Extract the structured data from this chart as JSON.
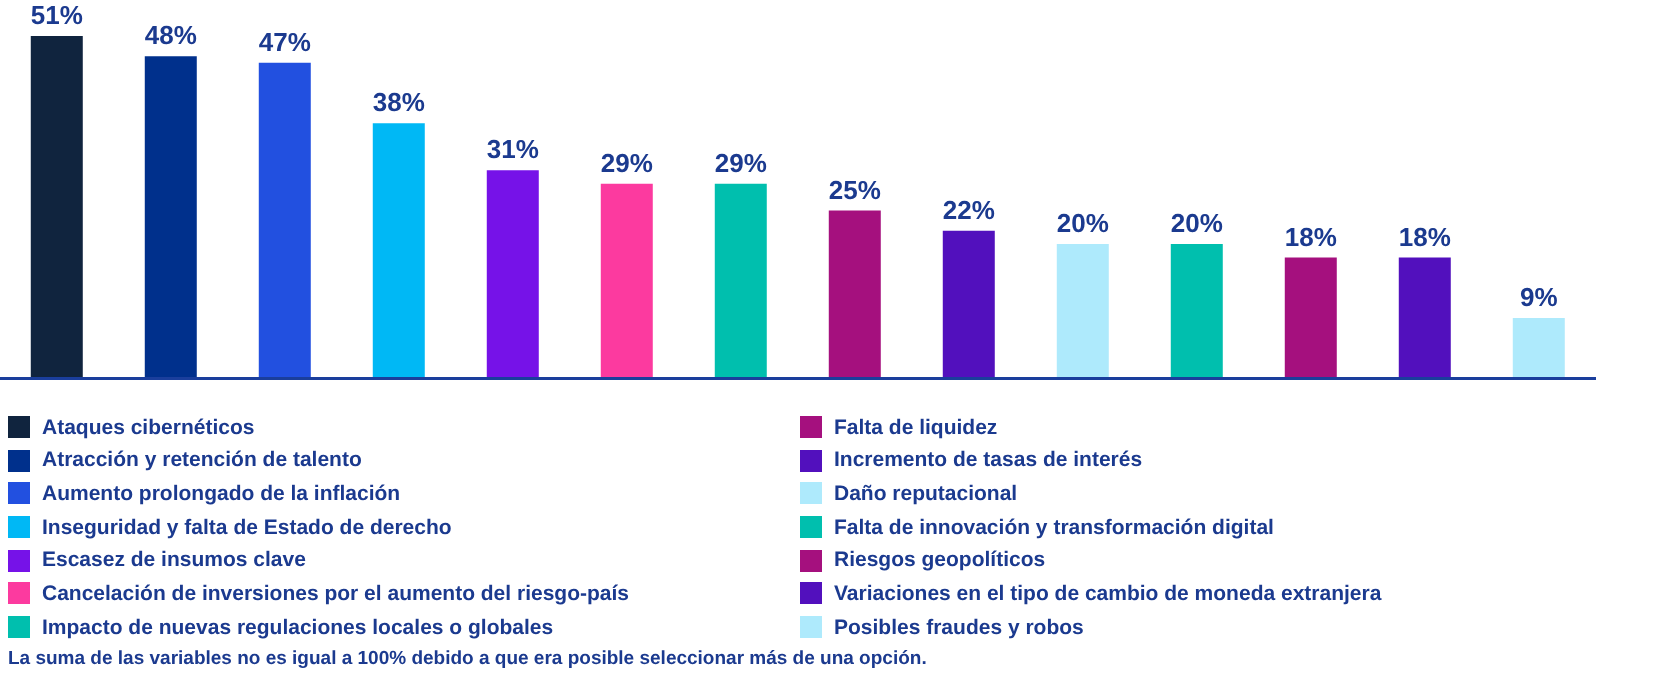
{
  "chart_data": {
    "type": "bar",
    "stacked": true,
    "categories": [
      null,
      null,
      null,
      null,
      null,
      null,
      null,
      null,
      null,
      null,
      null,
      null,
      null,
      null
    ],
    "series": [
      {
        "name": "Ataques cibernéticos",
        "color": "#10243e",
        "values": [
          51,
          null,
          null,
          null,
          null,
          null,
          null,
          null,
          null,
          null,
          null,
          null,
          null,
          null
        ],
        "value_labels": [
          "51%",
          null,
          null,
          null,
          null,
          null,
          null,
          null,
          null,
          null,
          null,
          null,
          null,
          null
        ]
      },
      {
        "name": "Atracción y retención de talento",
        "color": "#00308c",
        "values": [
          null,
          48,
          null,
          null,
          null,
          null,
          null,
          null,
          null,
          null,
          null,
          null,
          null,
          null
        ],
        "value_labels": [
          null,
          "48%",
          null,
          null,
          null,
          null,
          null,
          null,
          null,
          null,
          null,
          null,
          null,
          null
        ]
      },
      {
        "name": "Aumento prolongado de la inflación",
        "color": "#2250e0",
        "values": [
          null,
          null,
          47,
          null,
          null,
          null,
          null,
          null,
          null,
          null,
          null,
          null,
          null,
          null
        ],
        "value_labels": [
          null,
          null,
          "47%",
          null,
          null,
          null,
          null,
          null,
          null,
          null,
          null,
          null,
          null,
          null
        ]
      },
      {
        "name": "Inseguridad y falta de Estado de derecho",
        "color": "#00b8f5",
        "values": [
          null,
          null,
          null,
          38,
          null,
          null,
          null,
          null,
          null,
          null,
          null,
          null,
          null,
          null
        ],
        "value_labels": [
          null,
          null,
          null,
          "38%",
          null,
          null,
          null,
          null,
          null,
          null,
          null,
          null,
          null,
          null
        ]
      },
      {
        "name": "Escasez de insumos clave",
        "color": "#7612e8",
        "values": [
          null,
          null,
          null,
          null,
          31,
          null,
          null,
          null,
          null,
          null,
          null,
          null,
          null,
          null
        ],
        "value_labels": [
          null,
          null,
          null,
          null,
          "31%",
          null,
          null,
          null,
          null,
          null,
          null,
          null,
          null,
          null
        ]
      },
      {
        "name": "Cancelación de inversiones por el aumento del riesgo-país",
        "color": "#fc3a9f",
        "values": [
          null,
          null,
          null,
          null,
          null,
          29,
          null,
          null,
          null,
          null,
          null,
          null,
          null,
          null
        ],
        "value_labels": [
          null,
          null,
          null,
          null,
          null,
          "29%",
          null,
          null,
          null,
          null,
          null,
          null,
          null,
          null
        ]
      },
      {
        "name": "Impacto de nuevas regulaciones locales o globales",
        "color": "#00bfae",
        "values": [
          null,
          null,
          null,
          null,
          null,
          null,
          29,
          null,
          null,
          null,
          null,
          null,
          null,
          null
        ],
        "value_labels": [
          null,
          null,
          null,
          null,
          null,
          null,
          "29%",
          null,
          null,
          null,
          null,
          null,
          null,
          null
        ]
      },
      {
        "name": "Falta de liquidez",
        "color": "#a5107e",
        "values": [
          null,
          null,
          null,
          null,
          null,
          null,
          null,
          25,
          null,
          null,
          null,
          null,
          null,
          null
        ],
        "value_labels": [
          null,
          null,
          null,
          null,
          null,
          null,
          null,
          "25%",
          null,
          null,
          null,
          null,
          null,
          null
        ]
      },
      {
        "name": "Incremento de tasas de interés",
        "color": "#5210bd",
        "values": [
          null,
          null,
          null,
          null,
          null,
          null,
          null,
          null,
          22,
          null,
          null,
          null,
          null,
          null
        ],
        "value_labels": [
          null,
          null,
          null,
          null,
          null,
          null,
          null,
          null,
          "22%",
          null,
          null,
          null,
          null,
          null
        ]
      },
      {
        "name": "Daño reputacional",
        "color": "#aeeafc",
        "values": [
          null,
          null,
          null,
          null,
          null,
          null,
          null,
          null,
          null,
          20,
          null,
          null,
          null,
          null
        ],
        "value_labels": [
          null,
          null,
          null,
          null,
          null,
          null,
          null,
          null,
          null,
          "20%",
          null,
          null,
          null,
          null
        ]
      },
      {
        "name": "Falta de innovación y transformación digital",
        "color": "#00bfae",
        "values": [
          null,
          null,
          null,
          null,
          null,
          null,
          null,
          null,
          null,
          null,
          20,
          null,
          null,
          null
        ],
        "value_labels": [
          null,
          null,
          null,
          null,
          null,
          null,
          null,
          null,
          null,
          null,
          "20%",
          null,
          null,
          null
        ]
      },
      {
        "name": "Riesgos geopolíticos",
        "color": "#a5107e",
        "values": [
          null,
          null,
          null,
          null,
          null,
          null,
          null,
          null,
          null,
          null,
          null,
          18,
          null,
          null
        ],
        "value_labels": [
          null,
          null,
          null,
          null,
          null,
          null,
          null,
          null,
          null,
          null,
          null,
          "18%",
          null,
          null
        ]
      },
      {
        "name": "Variaciones en el tipo de cambio de moneda extranjera",
        "color": "#5210bd",
        "values": [
          null,
          null,
          null,
          null,
          null,
          null,
          null,
          null,
          null,
          null,
          null,
          null,
          18,
          null
        ],
        "value_labels": [
          null,
          null,
          null,
          null,
          null,
          null,
          null,
          null,
          null,
          null,
          null,
          null,
          "18%",
          null
        ]
      },
      {
        "name": "Posibles fraudes y robos",
        "color": "#aeeafc",
        "values": [
          null,
          null,
          null,
          null,
          null,
          null,
          null,
          null,
          null,
          null,
          null,
          null,
          null,
          9
        ],
        "value_labels": [
          null,
          null,
          null,
          null,
          null,
          null,
          null,
          null,
          null,
          null,
          null,
          null,
          null,
          "9%"
        ]
      }
    ],
    "tick_labels": false,
    "grid": false,
    "legend": "bottom",
    "annotations": [
      "La suma de las variables no es igual a 100% debido a que era posible seleccionar más de una opción."
    ]
  }
}
